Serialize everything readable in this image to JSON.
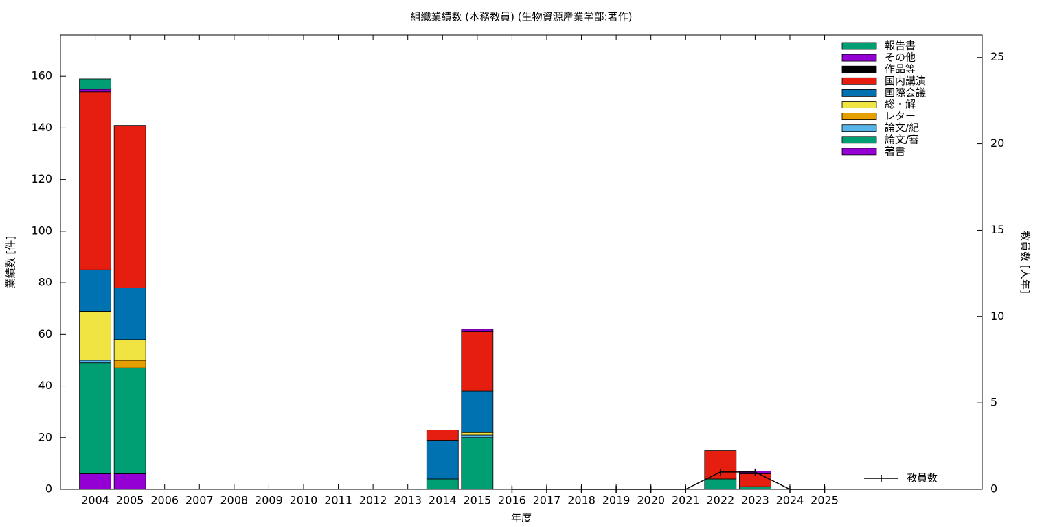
{
  "chart_data": {
    "type": "bar",
    "stacked": true,
    "title": "組織業績数 (本務教員) (生物資源産業学部:著作)",
    "xlabel": "年度",
    "ylabel": "業績数 [件]",
    "y2label": "教員数 [人年]",
    "categories": [
      "2004",
      "2005",
      "2006",
      "2007",
      "2008",
      "2009",
      "2010",
      "2011",
      "2012",
      "2013",
      "2014",
      "2015",
      "2016",
      "2017",
      "2018",
      "2019",
      "2020",
      "2021",
      "2022",
      "2023",
      "2024",
      "2025"
    ],
    "ylim": [
      0,
      176
    ],
    "yticks": [
      0,
      20,
      40,
      60,
      80,
      100,
      120,
      140,
      160
    ],
    "y2lim": [
      0,
      26.3
    ],
    "y2ticks": [
      0,
      5,
      10,
      15,
      20,
      25
    ],
    "series": [
      {
        "name": "著書",
        "color": "#9400d3",
        "values": [
          6,
          6,
          0,
          0,
          0,
          0,
          0,
          0,
          0,
          0,
          0,
          0,
          0,
          0,
          0,
          0,
          0,
          0,
          0,
          0,
          0,
          0
        ]
      },
      {
        "name": "論文/審",
        "color": "#009e73",
        "values": [
          43,
          41,
          0,
          0,
          0,
          0,
          0,
          0,
          0,
          0,
          4,
          20,
          0,
          0,
          0,
          0,
          0,
          0,
          4,
          1,
          0,
          0
        ]
      },
      {
        "name": "論文/紀",
        "color": "#56b4e9",
        "values": [
          1,
          0,
          0,
          0,
          0,
          0,
          0,
          0,
          0,
          0,
          0,
          1,
          0,
          0,
          0,
          0,
          0,
          0,
          0,
          0,
          0,
          0
        ]
      },
      {
        "name": "レター",
        "color": "#e69f00",
        "values": [
          0,
          3,
          0,
          0,
          0,
          0,
          0,
          0,
          0,
          0,
          0,
          0,
          0,
          0,
          0,
          0,
          0,
          0,
          0,
          0,
          0,
          0
        ]
      },
      {
        "name": "総・解",
        "color": "#f0e442",
        "values": [
          19,
          8,
          0,
          0,
          0,
          0,
          0,
          0,
          0,
          0,
          0,
          1,
          0,
          0,
          0,
          0,
          0,
          0,
          0,
          0,
          0,
          0
        ]
      },
      {
        "name": "国際会議",
        "color": "#0072b2",
        "values": [
          16,
          20,
          0,
          0,
          0,
          0,
          0,
          0,
          0,
          0,
          15,
          16,
          0,
          0,
          0,
          0,
          0,
          0,
          0,
          0,
          0,
          0
        ]
      },
      {
        "name": "国内講演",
        "color": "#e51e10",
        "values": [
          69,
          63,
          0,
          0,
          0,
          0,
          0,
          0,
          0,
          0,
          4,
          23,
          0,
          0,
          0,
          0,
          0,
          0,
          11,
          5,
          0,
          0
        ]
      },
      {
        "name": "作品等",
        "color": "#000000",
        "values": [
          0,
          0,
          0,
          0,
          0,
          0,
          0,
          0,
          0,
          0,
          0,
          0,
          0,
          0,
          0,
          0,
          0,
          0,
          0,
          0,
          0,
          0
        ]
      },
      {
        "name": "その他",
        "color": "#9400d3",
        "values": [
          1,
          0,
          0,
          0,
          0,
          0,
          0,
          0,
          0,
          0,
          0,
          1,
          0,
          0,
          0,
          0,
          0,
          0,
          0,
          1,
          0,
          0
        ]
      },
      {
        "name": "報告書",
        "color": "#009e73",
        "values": [
          4,
          0,
          0,
          0,
          0,
          0,
          0,
          0,
          0,
          0,
          0,
          0,
          0,
          0,
          0,
          0,
          0,
          0,
          0,
          0,
          0,
          0
        ]
      },
      {
        "name": "教員数",
        "color": "#000000",
        "type": "line",
        "axis": "y2",
        "values": [
          null,
          null,
          null,
          null,
          null,
          null,
          null,
          null,
          null,
          null,
          null,
          null,
          0,
          0,
          0,
          0,
          0,
          0,
          1,
          1,
          0,
          0
        ]
      }
    ]
  }
}
